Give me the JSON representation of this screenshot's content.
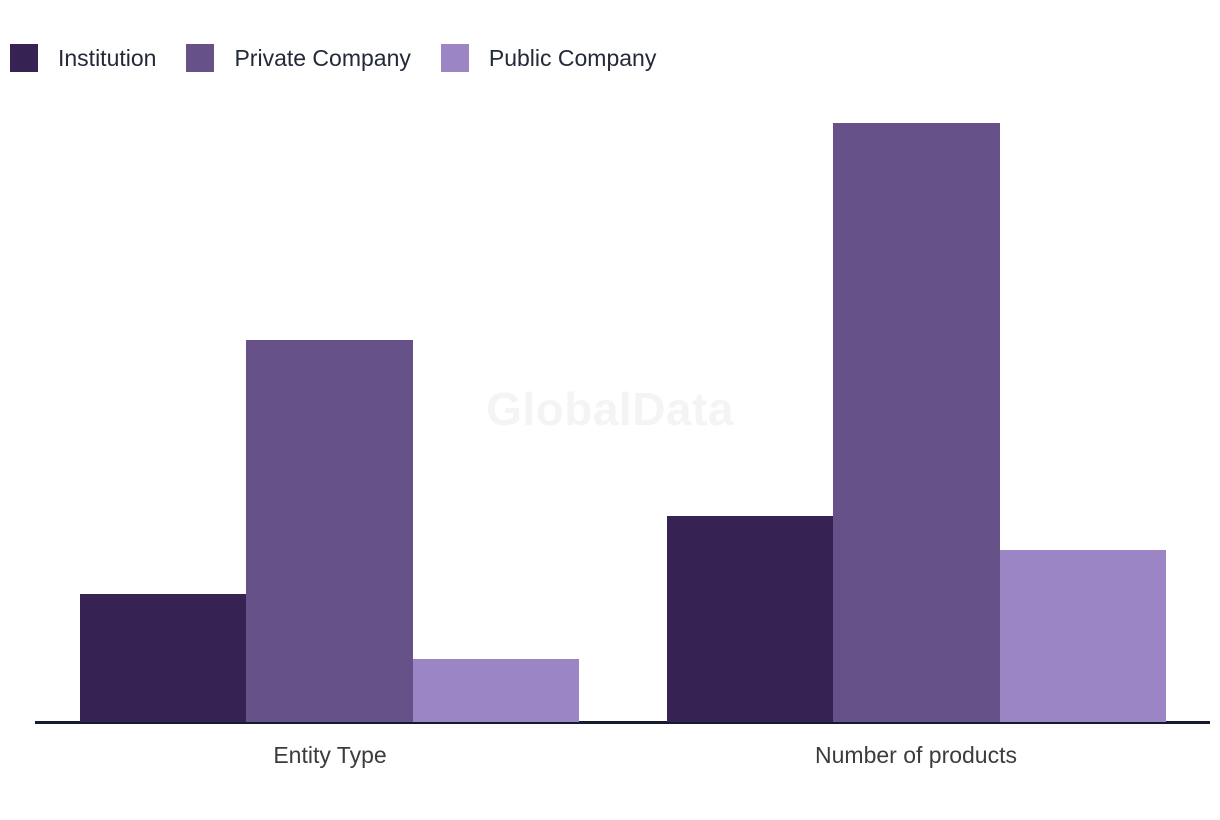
{
  "watermark": "GlobalData",
  "chart_data": {
    "type": "bar",
    "title": "",
    "xlabel": "",
    "ylabel": "",
    "categories": [
      "Entity Type",
      "Number of products"
    ],
    "series": [
      {
        "name": "Institution",
        "color": "#362253",
        "values": [
          21.4,
          34.4
        ]
      },
      {
        "name": "Private Company",
        "color": "#675189",
        "values": [
          63.8,
          100.0
        ]
      },
      {
        "name": "Public Company",
        "color": "#9b85c4",
        "values": [
          10.5,
          28.7
        ]
      }
    ],
    "ylim": [
      0,
      100
    ],
    "y_axis_ticks_visible": false,
    "grid": false,
    "legend_position": "top-left"
  },
  "colors": {
    "background": "#ffffff",
    "axis_line": "#171b30",
    "axis_label_text": "#3c3c3c",
    "legend_text": "#232938",
    "watermark": "#f4f4f4"
  }
}
